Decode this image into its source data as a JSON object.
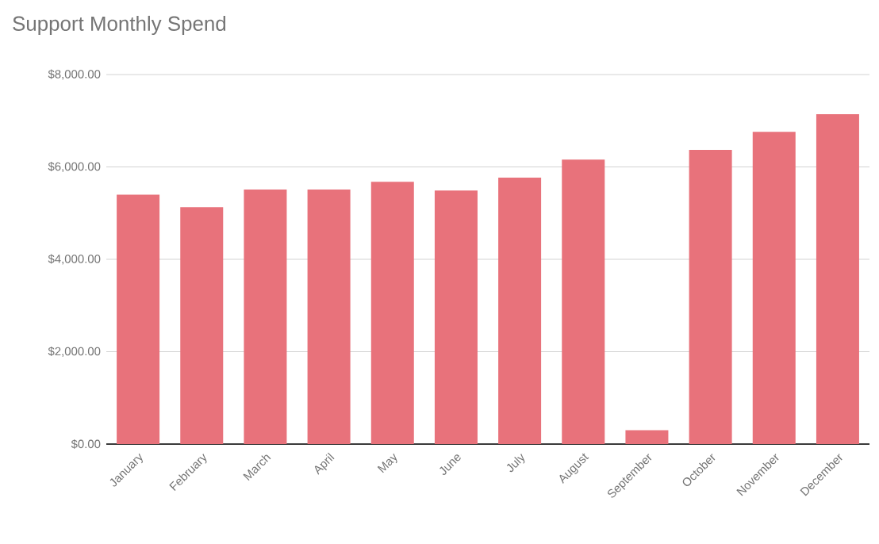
{
  "chart_data": {
    "type": "bar",
    "title": "Support Monthly Spend",
    "categories": [
      "January",
      "February",
      "March",
      "April",
      "May",
      "June",
      "July",
      "August",
      "September",
      "October",
      "November",
      "December"
    ],
    "values": [
      5400,
      5130,
      5510,
      5510,
      5680,
      5490,
      5770,
      6160,
      300,
      6370,
      6760,
      7140
    ],
    "color": "#e8727b",
    "ylim": [
      0,
      8000
    ],
    "yticks": [
      {
        "value": 0,
        "label": "$0.00"
      },
      {
        "value": 2000,
        "label": "$2,000.00"
      },
      {
        "value": 4000,
        "label": "$4,000.00"
      },
      {
        "value": 6000,
        "label": "$6,000.00"
      },
      {
        "value": 8000,
        "label": "$8,000.00"
      }
    ],
    "grid": "y"
  }
}
